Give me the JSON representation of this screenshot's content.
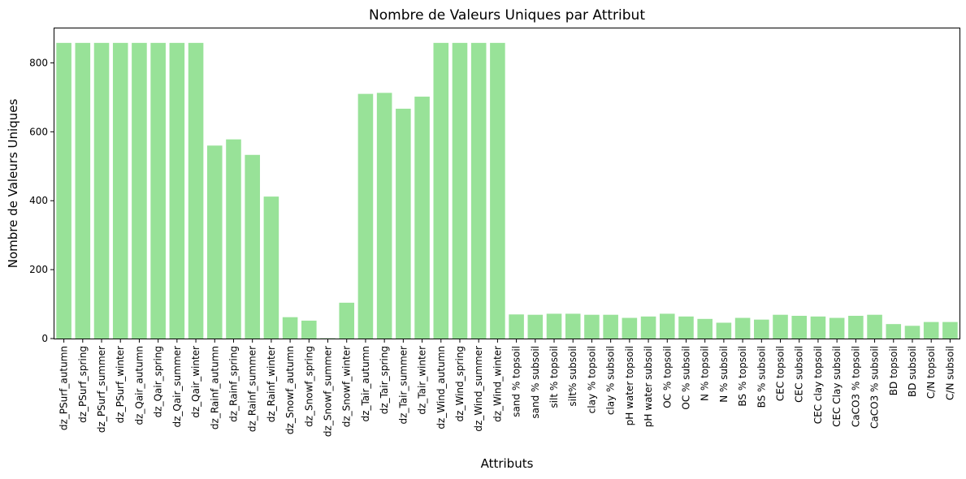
{
  "chart_data": {
    "type": "bar",
    "title": "Nombre de Valeurs Uniques par Attribut",
    "xlabel": "Attributs",
    "ylabel": "Nombre de Valeurs Uniques",
    "ylim": [
      0,
      900
    ],
    "yticks": [
      0,
      200,
      400,
      600,
      800
    ],
    "grid": false,
    "bar_color": "#98e298",
    "categories": [
      "dz_PSurf_autumn",
      "dz_PSurf_spring",
      "dz_PSurf_summer",
      "dz_PSurf_winter",
      "dz_Qair_autumn",
      "dz_Qair_spring",
      "dz_Qair_summer",
      "dz_Qair_winter",
      "dz_Rainf_autumn",
      "dz_Rainf_spring",
      "dz_Rainf_summer",
      "dz_Rainf_winter",
      "dz_Snowf_autumn",
      "dz_Snowf_spring",
      "dz_Snowf_summer",
      "dz_Snowf_winter",
      "dz_Tair_autumn",
      "dz_Tair_spring",
      "dz_Tair_summer",
      "dz_Tair_winter",
      "dz_Wind_autumn",
      "dz_Wind_spring",
      "dz_Wind_summer",
      "dz_Wind_winter",
      "sand % topsoil",
      "sand % subsoil",
      "silt % topsoil",
      "silt% subsoil",
      "clay % topsoil",
      "clay % subsoil",
      "pH water topsoil",
      "pH water subsoil",
      "OC % topsoil",
      "OC % subsoil",
      "N % topsoil",
      "N % subsoil",
      "BS % topsoil",
      "BS % subsoil",
      "CEC topsoil",
      "CEC subsoil",
      "CEC clay topsoil",
      "CEC Clay subsoil",
      "CaCO3 % topsoil",
      "CaCO3 % subsoil",
      "BD topsoil",
      "BD subsoil",
      "C/N topsoil",
      "C/N subsoil"
    ],
    "values": [
      858,
      858,
      858,
      858,
      858,
      858,
      858,
      858,
      560,
      578,
      533,
      412,
      62,
      52,
      1,
      104,
      710,
      713,
      667,
      702,
      858,
      858,
      858,
      858,
      70,
      69,
      72,
      72,
      69,
      69,
      60,
      64,
      72,
      64,
      57,
      46,
      60,
      55,
      69,
      66,
      64,
      60,
      66,
      69,
      42,
      37,
      48,
      48
    ]
  }
}
